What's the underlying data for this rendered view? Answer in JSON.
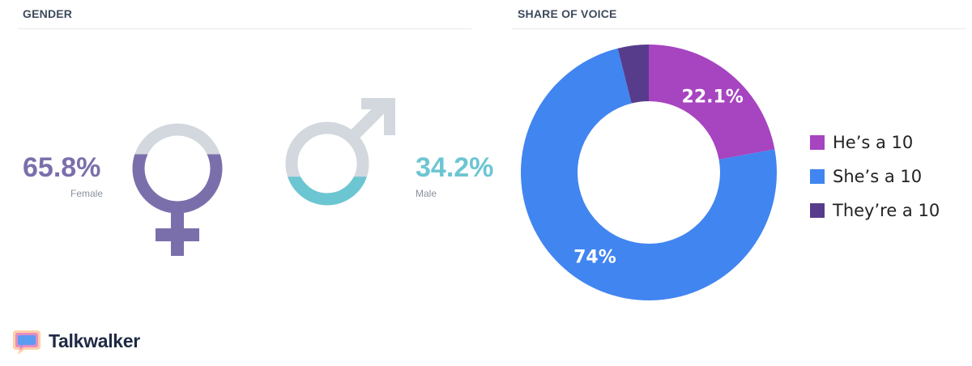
{
  "gender": {
    "title": "GENDER",
    "female": {
      "percent": "65.8%",
      "label": "Female",
      "fraction": 0.658,
      "color": "#7b6fab"
    },
    "male": {
      "percent": "34.2%",
      "label": "Male",
      "fraction": 0.342,
      "color": "#6cc6d2"
    },
    "empty_color": "#d2d8de"
  },
  "share": {
    "title": "SHARE OF VOICE"
  },
  "chart_data": {
    "type": "pie",
    "title": "",
    "categories": [
      "He’s a 10",
      "She’s a 10",
      "They’re a 10"
    ],
    "values": [
      22.1,
      74,
      3.9
    ],
    "data_labels": [
      "22.1%",
      "74%",
      ""
    ],
    "colors": [
      "#a744c0",
      "#4185f0",
      "#573c8c"
    ],
    "legend_position": "right"
  },
  "brand": {
    "name": "Talkwalker",
    "icon": "talkwalker-logo-icon"
  }
}
